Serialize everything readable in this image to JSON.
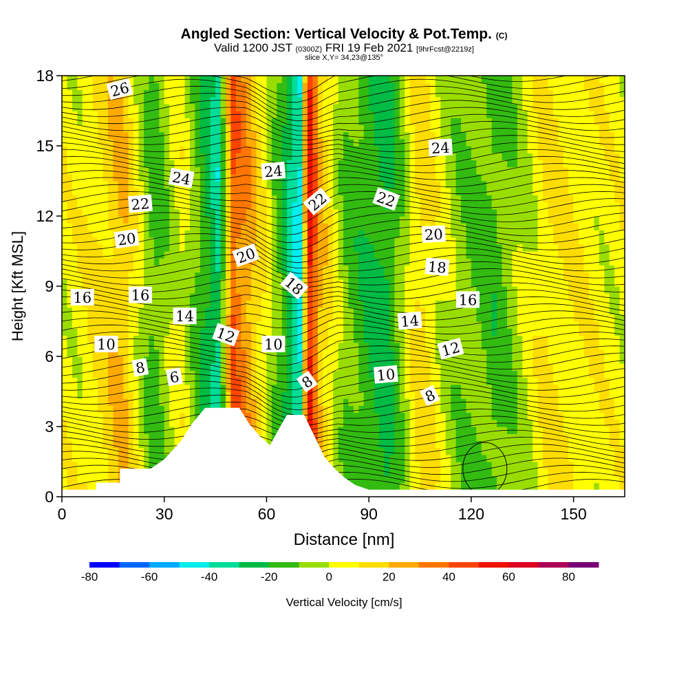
{
  "header": {
    "title": "Angled Section: Vertical Velocity & Pot.Temp.",
    "title_suffix": "(C)",
    "valid_main": "Valid 1200 JST",
    "valid_z": "(0300Z)",
    "valid_date": "FRI 19 Feb 2021",
    "forecast": "[9hrFcst@2219z]",
    "slice": "slice X,Y= 34,23@135°"
  },
  "chart_data": {
    "type": "heatmap",
    "title": "Angled Section: Vertical Velocity & Pot.Temp.",
    "xlabel": "Distance [nm]",
    "ylabel": "Height [Kft MSL]",
    "xlim": [
      0,
      165
    ],
    "ylim": [
      0,
      18
    ],
    "x_ticks": [
      0,
      30,
      60,
      90,
      120,
      150
    ],
    "y_ticks": [
      0,
      3,
      6,
      9,
      12,
      15,
      18
    ],
    "grid": false,
    "fill_variable": "Vertical Velocity [cm/s]",
    "contour_variable": "Potential Temperature (C)",
    "vertical_velocity_columns": [
      {
        "x": 5,
        "value": 5
      },
      {
        "x": 18,
        "value": 20
      },
      {
        "x": 27,
        "value": -15
      },
      {
        "x": 35,
        "value": 5
      },
      {
        "x": 42,
        "value": -20
      },
      {
        "x": 46,
        "value": -35
      },
      {
        "x": 50,
        "value": 40
      },
      {
        "x": 55,
        "value": 25
      },
      {
        "x": 60,
        "value": 5
      },
      {
        "x": 66,
        "value": -25
      },
      {
        "x": 70,
        "value": -45
      },
      {
        "x": 72,
        "value": 60
      },
      {
        "x": 76,
        "value": 20
      },
      {
        "x": 83,
        "value": -10
      },
      {
        "x": 95,
        "value": -25
      },
      {
        "x": 105,
        "value": 15
      },
      {
        "x": 115,
        "value": -5
      },
      {
        "x": 127,
        "value": -15
      },
      {
        "x": 142,
        "value": 10
      },
      {
        "x": 160,
        "value": 5
      }
    ],
    "terrain_profile": [
      [
        0,
        0.3
      ],
      [
        10,
        0.3
      ],
      [
        10,
        0.6
      ],
      [
        17,
        0.6
      ],
      [
        17,
        1.2
      ],
      [
        26,
        1.2
      ],
      [
        30,
        1.6
      ],
      [
        35,
        2.4
      ],
      [
        38,
        3.1
      ],
      [
        42,
        3.8
      ],
      [
        52,
        3.8
      ],
      [
        55,
        3.1
      ],
      [
        58,
        2.6
      ],
      [
        61,
        2.2
      ],
      [
        64,
        3.0
      ],
      [
        66,
        3.5
      ],
      [
        71,
        3.5
      ],
      [
        74,
        2.6
      ],
      [
        77,
        1.7
      ],
      [
        80,
        1.2
      ],
      [
        83,
        0.8
      ],
      [
        86,
        0.5
      ],
      [
        90,
        0.3
      ],
      [
        165,
        0.3
      ]
    ],
    "contour_labels": [
      {
        "text": "26",
        "x": 17,
        "y": 17.4,
        "angle": -15
      },
      {
        "text": "24",
        "x": 35,
        "y": 13.6,
        "angle": 10
      },
      {
        "text": "24",
        "x": 62,
        "y": 13.9,
        "angle": -5
      },
      {
        "text": "24",
        "x": 111,
        "y": 14.9,
        "angle": -3
      },
      {
        "text": "22",
        "x": 23,
        "y": 12.5,
        "angle": -5
      },
      {
        "text": "22",
        "x": 75,
        "y": 12.6,
        "angle": -40
      },
      {
        "text": "22",
        "x": 95,
        "y": 12.7,
        "angle": 20
      },
      {
        "text": "20",
        "x": 19,
        "y": 11.0,
        "angle": -8
      },
      {
        "text": "20",
        "x": 54,
        "y": 10.3,
        "angle": -20
      },
      {
        "text": "20",
        "x": 109,
        "y": 11.2,
        "angle": -3
      },
      {
        "text": "18",
        "x": 68,
        "y": 9.0,
        "angle": 40
      },
      {
        "text": "18",
        "x": 110,
        "y": 9.8,
        "angle": 5
      },
      {
        "text": "16",
        "x": 6,
        "y": 8.5,
        "angle": 0
      },
      {
        "text": "16",
        "x": 23,
        "y": 8.6,
        "angle": 0
      },
      {
        "text": "16",
        "x": 119,
        "y": 8.4,
        "angle": 0
      },
      {
        "text": "14",
        "x": 36,
        "y": 7.7,
        "angle": 0
      },
      {
        "text": "14",
        "x": 102,
        "y": 7.5,
        "angle": -5
      },
      {
        "text": "12",
        "x": 48,
        "y": 6.9,
        "angle": 20
      },
      {
        "text": "12",
        "x": 114,
        "y": 6.3,
        "angle": -15
      },
      {
        "text": "10",
        "x": 13,
        "y": 6.5,
        "angle": 0
      },
      {
        "text": "10",
        "x": 62,
        "y": 6.5,
        "angle": 0
      },
      {
        "text": "10",
        "x": 95,
        "y": 5.2,
        "angle": -5
      },
      {
        "text": "8",
        "x": 23,
        "y": 5.5,
        "angle": -10
      },
      {
        "text": "8",
        "x": 72,
        "y": 4.9,
        "angle": -35
      },
      {
        "text": "8",
        "x": 108,
        "y": 4.3,
        "angle": -25
      },
      {
        "text": "6",
        "x": 33,
        "y": 5.1,
        "angle": -10
      }
    ]
  },
  "colorbar": {
    "label": "Vertical Velocity [cm/s]",
    "min": -80,
    "max": 90,
    "step": 10,
    "tick_labels": [
      "-80",
      "-60",
      "-40",
      "-20",
      "0",
      "20",
      "40",
      "60",
      "80"
    ],
    "colors": [
      "#0000ff",
      "#0066ff",
      "#00aaff",
      "#00eeee",
      "#00dd99",
      "#00bb44",
      "#33bb11",
      "#99dd00",
      "#ffff00",
      "#ffdd00",
      "#ffaa00",
      "#ff7700",
      "#ff4400",
      "#ee1100",
      "#dd0022",
      "#aa0055",
      "#770077"
    ]
  }
}
